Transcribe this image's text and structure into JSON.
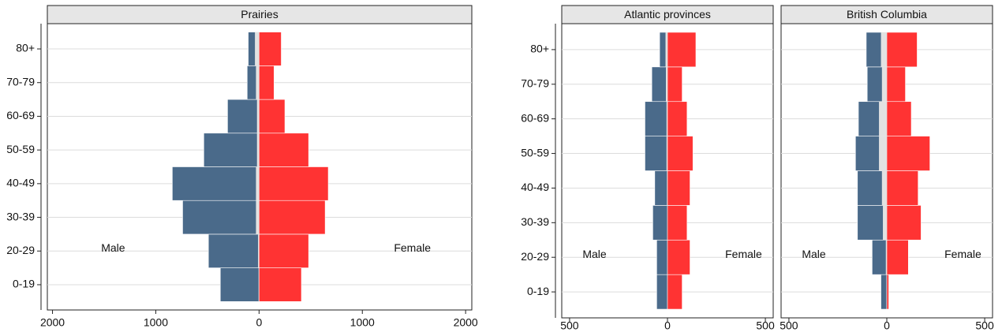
{
  "chart_data": [
    {
      "type": "bar",
      "title": "Prairies",
      "categories": [
        "0-19",
        "20-29",
        "30-39",
        "40-49",
        "50-59",
        "60-69",
        "70-79",
        "80+"
      ],
      "series": [
        {
          "name": "Male",
          "color": "#4a6a8a",
          "values": [
            -375,
            -490,
            -740,
            -840,
            -535,
            -305,
            -115,
            -105
          ]
        },
        {
          "name": "Female",
          "color": "#ff3333",
          "values": [
            410,
            480,
            640,
            670,
            480,
            250,
            145,
            215
          ]
        },
        {
          "color": "#e2e2e2",
          "values": [
            -5,
            -10,
            -30,
            -30,
            -20,
            -20,
            -30,
            -40
          ]
        }
      ],
      "xlim": [
        -2050,
        2060
      ],
      "xticks": [
        {
          "value": -2000,
          "label": "2000"
        },
        {
          "value": -1000,
          "label": "1000"
        },
        0,
        1000,
        2000
      ],
      "grid": true
    },
    {
      "type": "bar",
      "title": "Atlantic provinces",
      "categories": [
        "0-19",
        "20-29",
        "30-39",
        "40-49",
        "50-59",
        "60-69",
        "70-79",
        "80+"
      ],
      "series": [
        {
          "name": "Male",
          "color": "#4a6a8a",
          "values": [
            -55,
            -55,
            -75,
            -65,
            -115,
            -115,
            -80,
            -40
          ]
        },
        {
          "name": "Female",
          "color": "#ff3333",
          "values": [
            75,
            115,
            100,
            115,
            130,
            100,
            75,
            145
          ]
        },
        {
          "color": "#e2e2e2",
          "values": [
            0,
            0,
            -2,
            -3,
            -5,
            -5,
            -8,
            -10
          ]
        }
      ],
      "xlim": [
        -540,
        540
      ],
      "xticks": [
        {
          "value": -500,
          "label": "500"
        },
        0,
        500
      ],
      "grid": true
    },
    {
      "type": "bar",
      "title": "British Columbia",
      "categories": [
        "0-19",
        "20-29",
        "30-39",
        "40-49",
        "50-59",
        "60-69",
        "70-79",
        "80+"
      ],
      "series": [
        {
          "name": "Male",
          "color": "#4a6a8a",
          "values": [
            -30,
            -75,
            -150,
            -150,
            -160,
            -145,
            -100,
            -105
          ]
        },
        {
          "name": "Female",
          "color": "#ff3333",
          "values": [
            10,
            110,
            175,
            160,
            220,
            125,
            95,
            155
          ]
        },
        {
          "color": "#e2e2e2",
          "values": [
            0,
            -5,
            -20,
            -25,
            -40,
            -40,
            -25,
            -30
          ]
        }
      ],
      "xlim": [
        -540,
        540
      ],
      "xticks": [
        {
          "value": -500,
          "label": "500"
        },
        0,
        500
      ],
      "grid": true
    }
  ]
}
